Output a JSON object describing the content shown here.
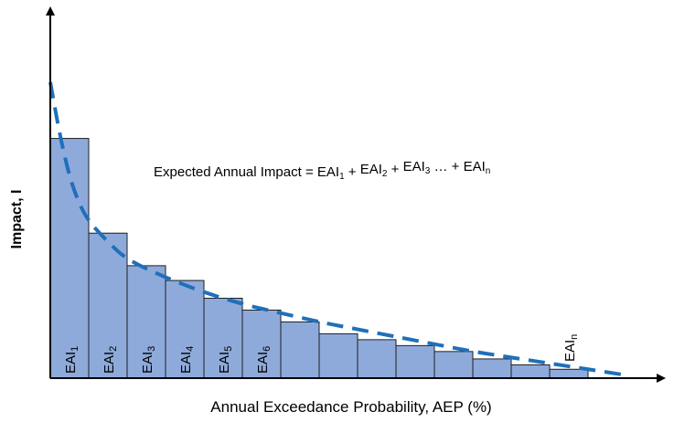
{
  "chart_data": {
    "type": "bar",
    "xlabel": "Annual Exceedance Probability, AEP (%)",
    "ylabel": "Impact, I",
    "annotation": {
      "prefix": "Expected Annual Impact = ",
      "terms": [
        {
          "base": "EAI",
          "sub": "1"
        },
        {
          "base": "EAI",
          "sub": "2"
        },
        {
          "base": "EAI",
          "sub": "3"
        }
      ],
      "ellipsis": " … + ",
      "last": {
        "base": "EAI",
        "sub": "n"
      }
    },
    "bar_labels": [
      {
        "base": "EAI",
        "sub": "1"
      },
      {
        "base": "EAI",
        "sub": "2"
      },
      {
        "base": "EAI",
        "sub": "3"
      },
      {
        "base": "EAI",
        "sub": "4"
      },
      {
        "base": "EAI",
        "sub": "5"
      },
      {
        "base": "EAI",
        "sub": "6"
      },
      null,
      null,
      null,
      null,
      null,
      null,
      null,
      {
        "base": "EAI",
        "sub": "n"
      }
    ],
    "values": [
      0.81,
      0.49,
      0.38,
      0.33,
      0.27,
      0.23,
      0.19,
      0.15,
      0.13,
      0.11,
      0.09,
      0.065,
      0.045,
      0.03
    ],
    "curve": {
      "style": "dashed",
      "x": [
        0,
        0.25,
        0.5,
        0.75,
        1,
        1.5,
        2,
        3,
        4,
        5,
        6,
        7,
        8,
        9,
        10,
        11,
        12,
        13,
        14,
        15
      ],
      "y": [
        1.0,
        0.82,
        0.68,
        0.59,
        0.53,
        0.46,
        0.4,
        0.34,
        0.29,
        0.25,
        0.22,
        0.19,
        0.165,
        0.14,
        0.115,
        0.09,
        0.07,
        0.05,
        0.03,
        0.01
      ]
    },
    "ylim": [
      0,
      1.25
    ],
    "xlim": [
      0,
      16
    ],
    "grid": false,
    "colors": {
      "bar_fill": "#8eaadb",
      "bar_stroke": "#1f1f1f",
      "curve": "#1f70b8",
      "axis": "#000000"
    }
  }
}
